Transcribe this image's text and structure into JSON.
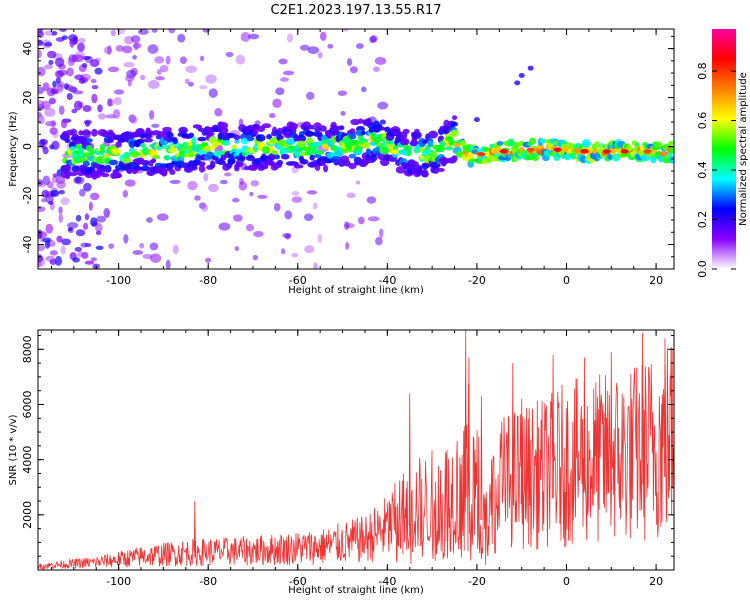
{
  "title": "C2E1.2023.197.13.55.R17",
  "chart_data": [
    {
      "type": "heatmap",
      "name": "spectrogram",
      "xlabel": "Height of straight line (km)",
      "ylabel": "Frequency (Hz)",
      "xlim": [
        -118,
        24
      ],
      "ylim": [
        -50,
        48
      ],
      "xticks": [
        -100,
        -80,
        -60,
        -40,
        -20,
        0,
        20
      ],
      "yticks": [
        -40,
        -20,
        0,
        20,
        40
      ],
      "colorbar": {
        "label": "Normalized spectral amplitude",
        "range": [
          0.0,
          0.97
        ],
        "ticks": [
          0.0,
          0.2,
          0.4,
          0.6,
          0.8
        ],
        "colors": [
          "#ffffff",
          "#8a00ff",
          "#0000ff",
          "#00ffff",
          "#00ff00",
          "#ffff00",
          "#ff8000",
          "#ff0000",
          "#ff00a0"
        ]
      },
      "ridge": [
        {
          "x": -110,
          "f": -3
        },
        {
          "x": -100,
          "f": -3
        },
        {
          "x": -90,
          "f": -2
        },
        {
          "x": -80,
          "f": 0
        },
        {
          "x": -70,
          "f": 0
        },
        {
          "x": -60,
          "f": 0
        },
        {
          "x": -50,
          "f": 0
        },
        {
          "x": -42,
          "f": 3
        },
        {
          "x": -38,
          "f": -2
        },
        {
          "x": -30,
          "f": -3
        },
        {
          "x": -25,
          "f": 3
        },
        {
          "x": -22,
          "f": -4
        },
        {
          "x": -15,
          "f": -2
        },
        {
          "x": -5,
          "f": -1
        },
        {
          "x": 5,
          "f": -2
        },
        {
          "x": 24,
          "f": -2
        }
      ]
    },
    {
      "type": "line",
      "name": "snr",
      "xlabel": "Height of straight line (km)",
      "ylabel": "SNR (10 * v/v)",
      "xlim": [
        -118,
        24
      ],
      "ylim": [
        0,
        8700
      ],
      "xticks": [
        -100,
        -80,
        -60,
        -40,
        -20,
        0,
        20
      ],
      "yticks": [
        2000,
        4000,
        6000,
        8000
      ],
      "color": "#ee3333",
      "envelope": [
        {
          "x": -118,
          "v": 200
        },
        {
          "x": -105,
          "v": 400
        },
        {
          "x": -95,
          "v": 700
        },
        {
          "x": -85,
          "v": 900
        },
        {
          "x": -70,
          "v": 1000
        },
        {
          "x": -55,
          "v": 1200
        },
        {
          "x": -45,
          "v": 1600
        },
        {
          "x": -40,
          "v": 2200
        },
        {
          "x": -35,
          "v": 3200
        },
        {
          "x": -30,
          "v": 3500
        },
        {
          "x": -25,
          "v": 4000
        },
        {
          "x": -22,
          "v": 5500
        },
        {
          "x": -18,
          "v": 3000
        },
        {
          "x": -15,
          "v": 4500
        },
        {
          "x": -10,
          "v": 4800
        },
        {
          "x": -5,
          "v": 5000
        },
        {
          "x": 0,
          "v": 5500
        },
        {
          "x": 10,
          "v": 5800
        },
        {
          "x": 15,
          "v": 6000
        },
        {
          "x": 20,
          "v": 6500
        },
        {
          "x": 24,
          "v": 7000
        }
      ],
      "spikes": [
        {
          "x": -83,
          "v": 2500
        },
        {
          "x": -35,
          "v": 6400
        },
        {
          "x": -22.5,
          "v": 8700
        },
        {
          "x": -21.8,
          "v": 7700
        },
        {
          "x": -19,
          "v": 6300
        },
        {
          "x": -12,
          "v": 7500
        },
        {
          "x": -10,
          "v": 6200
        },
        {
          "x": -3,
          "v": 7800
        },
        {
          "x": 4,
          "v": 7700
        },
        {
          "x": 10,
          "v": 7900
        },
        {
          "x": 17,
          "v": 8600
        },
        {
          "x": 22,
          "v": 8400
        }
      ]
    }
  ]
}
